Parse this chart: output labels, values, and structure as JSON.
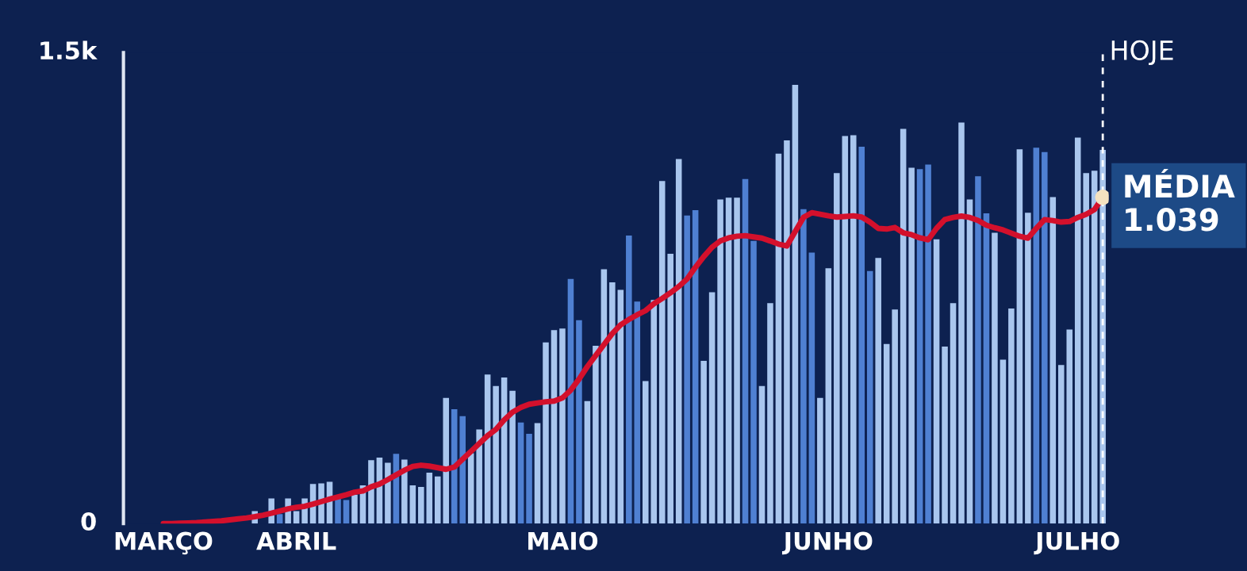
{
  "chart_data": {
    "type": "bar",
    "categories": [
      "MARÇO",
      null,
      null,
      null,
      null,
      null,
      null,
      null,
      null,
      null,
      null,
      null,
      null,
      null,
      null,
      null,
      "ABRIL",
      null,
      null,
      null,
      null,
      null,
      null,
      null,
      null,
      null,
      null,
      null,
      null,
      null,
      null,
      null,
      null,
      null,
      null,
      null,
      null,
      null,
      null,
      null,
      null,
      null,
      null,
      null,
      null,
      null,
      null,
      null,
      "MAIO",
      null,
      null,
      null,
      null,
      null,
      null,
      null,
      null,
      null,
      null,
      null,
      null,
      null,
      null,
      null,
      null,
      null,
      null,
      null,
      null,
      null,
      null,
      null,
      null,
      null,
      null,
      null,
      null,
      null,
      null,
      null,
      "JUNHO",
      null,
      null,
      null,
      null,
      null,
      null,
      null,
      null,
      null,
      null,
      null,
      null,
      null,
      null,
      null,
      null,
      null,
      null,
      null,
      null,
      null,
      null,
      null,
      null,
      null,
      null,
      null,
      null,
      null,
      "JULHO",
      null,
      null,
      null
    ],
    "series": [
      {
        "values": [
          null,
          null,
          null,
          null,
          null,
          null,
          null,
          null,
          null,
          null,
          null,
          40,
          null,
          80,
          30,
          80,
          40,
          80,
          126,
          128,
          133,
          83,
          75,
          92,
          122,
          202,
          210,
          194,
          222,
          204,
          122,
          117,
          162,
          150,
          400,
          364,
          342,
          224,
          300,
          475,
          438,
          465,
          423,
          322,
          286,
          320,
          577,
          616,
          621,
          779,
          648,
          390,
          566,
          810,
          768,
          744,
          917,
          707,
          454,
          712,
          1091,
          859,
          1161,
          981,
          998,
          518,
          737,
          1032,
          1038,
          1038,
          1097,
          900,
          438,
          702,
          1178,
          1220,
          1397,
          1001,
          863,
          400,
          813,
          1116,
          1234,
          1237,
          1200,
          804,
          846,
          572,
          682,
          1257,
          1133,
          1129,
          1143,
          905,
          564,
          702,
          1277,
          1032,
          1106,
          988,
          926,
          522,
          685,
          1192,
          990,
          1197,
          1183,
          1040,
          505,
          618,
          1229,
          1116,
          1124,
          1190
        ],
        "colors": [
          "#a9c6ee",
          "#a9c6ee",
          "#a9c6ee",
          "#a9c6ee",
          "#a9c6ee",
          "#a9c6ee",
          "#a9c6ee",
          "#a9c6ee",
          "#a9c6ee",
          "#a9c6ee",
          "#a9c6ee",
          "#a9c6ee",
          "#a9c6ee",
          "#a9c6ee",
          "#4f80d2",
          "#a9c6ee",
          "#a9c6ee",
          "#a9c6ee",
          "#a9c6ee",
          "#a9c6ee",
          "#a9c6ee",
          "#4f80d2",
          "#4f80d2",
          "#a9c6ee",
          "#a9c6ee",
          "#a9c6ee",
          "#a9c6ee",
          "#a9c6ee",
          "#4f80d2",
          "#a9c6ee",
          "#a9c6ee",
          "#a9c6ee",
          "#a9c6ee",
          "#a9c6ee",
          "#a9c6ee",
          "#4f80d2",
          "#4f80d2",
          "#a9c6ee",
          "#a9c6ee",
          "#a9c6ee",
          "#a9c6ee",
          "#a9c6ee",
          "#a9c6ee",
          "#4f80d2",
          "#4f80d2",
          "#a9c6ee",
          "#a9c6ee",
          "#a9c6ee",
          "#a9c6ee",
          "#4f80d2",
          "#4f80d2",
          "#a9c6ee",
          "#a9c6ee",
          "#a9c6ee",
          "#a9c6ee",
          "#a9c6ee",
          "#4f80d2",
          "#4f80d2",
          "#a9c6ee",
          "#a9c6ee",
          "#a9c6ee",
          "#a9c6ee",
          "#a9c6ee",
          "#4f80d2",
          "#4f80d2",
          "#a9c6ee",
          "#a9c6ee",
          "#a9c6ee",
          "#a9c6ee",
          "#a9c6ee",
          "#4f80d2",
          "#4f80d2",
          "#a9c6ee",
          "#a9c6ee",
          "#a9c6ee",
          "#a9c6ee",
          "#a9c6ee",
          "#4f80d2",
          "#4f80d2",
          "#a9c6ee",
          "#a9c6ee",
          "#a9c6ee",
          "#a9c6ee",
          "#a9c6ee",
          "#4f80d2",
          "#4f80d2",
          "#a9c6ee",
          "#a9c6ee",
          "#a9c6ee",
          "#a9c6ee",
          "#a9c6ee",
          "#4f80d2",
          "#4f80d2",
          "#a9c6ee",
          "#a9c6ee",
          "#a9c6ee",
          "#a9c6ee",
          "#a9c6ee",
          "#4f80d2",
          "#4f80d2",
          "#a9c6ee",
          "#a9c6ee",
          "#a9c6ee",
          "#a9c6ee",
          "#a9c6ee",
          "#4f80d2",
          "#4f80d2",
          "#a9c6ee",
          "#a9c6ee",
          "#a9c6ee",
          "#a9c6ee",
          "#a9c6ee",
          "#a9c6ee",
          "#a9c6ee"
        ]
      },
      {
        "type": "line",
        "color": "#d3102c",
        "values": [
          0,
          0,
          1,
          2,
          3,
          5,
          7,
          9,
          12,
          15,
          18,
          22,
          27,
          33,
          40,
          47,
          52,
          55,
          62,
          70,
          78,
          85,
          92,
          100,
          104,
          117,
          126,
          140,
          155,
          170,
          182,
          186,
          183,
          178,
          173,
          180,
          205,
          230,
          255,
          280,
          300,
          330,
          355,
          370,
          380,
          384,
          388,
          390,
          400,
          425,
          460,
          500,
          535,
          570,
          605,
          633,
          650,
          665,
          678,
          700,
          717,
          735,
          755,
          779,
          816,
          850,
          880,
          900,
          910,
          915,
          917,
          913,
          909,
          900,
          890,
          884,
          930,
          975,
          990,
          985,
          980,
          976,
          978,
          980,
          976,
          960,
          940,
          938,
          943,
          926,
          920,
          910,
          904,
          940,
          968,
          975,
          979,
          975,
          965,
          950,
          942,
          935,
          925,
          915,
          909,
          940,
          968,
          965,
          960,
          962,
          975,
          985,
          1000,
          1039
        ]
      }
    ],
    "ylim": [
      0,
      1500
    ],
    "yticks": [
      0,
      {
        "value": 1500,
        "label": "1.5k"
      }
    ],
    "annotations": [
      "HOJE",
      "MÉDIA\n1.039"
    ]
  }
}
